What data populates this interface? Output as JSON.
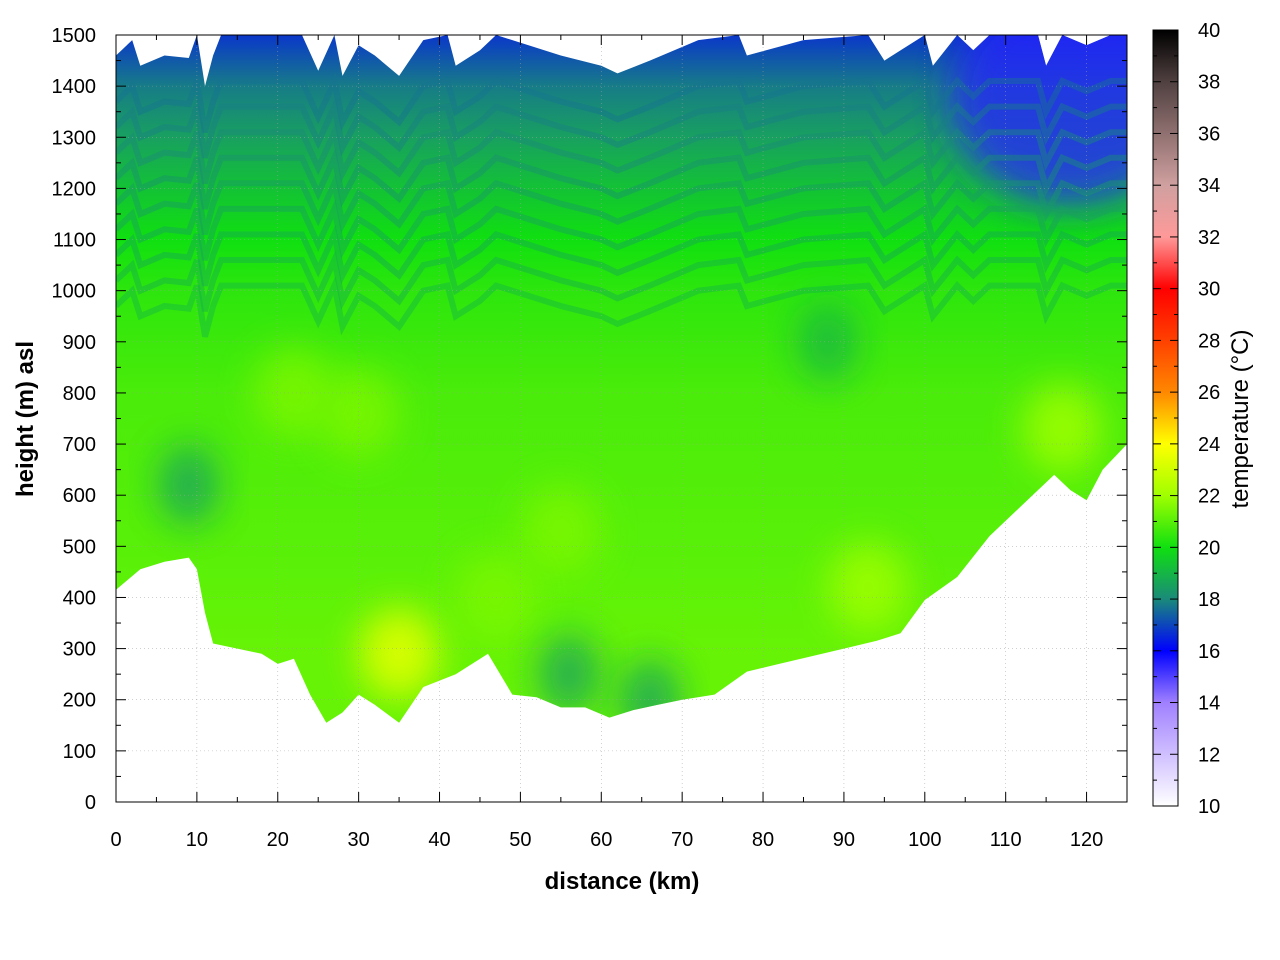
{
  "chart_data": {
    "type": "heatmap",
    "xlabel": "distance (km)",
    "ylabel": "height (m) asl",
    "colorbar_label": "temperature (°C)",
    "xlim": [
      0,
      125
    ],
    "ylim": [
      0,
      1500
    ],
    "clim": [
      10,
      40
    ],
    "x_ticks": [
      0,
      10,
      20,
      30,
      40,
      50,
      60,
      70,
      80,
      90,
      100,
      110,
      120
    ],
    "y_ticks": [
      0,
      100,
      200,
      300,
      400,
      500,
      600,
      700,
      800,
      900,
      1000,
      1100,
      1200,
      1300,
      1400,
      1500
    ],
    "colorbar_ticks": [
      10,
      12,
      14,
      16,
      18,
      20,
      22,
      24,
      26,
      28,
      30,
      32,
      34,
      36,
      38,
      40
    ],
    "grid": true,
    "colormap": [
      {
        "t": 10,
        "color": "#ffffff"
      },
      {
        "t": 14,
        "color": "#a080ff"
      },
      {
        "t": 16,
        "color": "#0000ff"
      },
      {
        "t": 18,
        "color": "#1a8a7a"
      },
      {
        "t": 20,
        "color": "#10e010"
      },
      {
        "t": 22,
        "color": "#a0ff00"
      },
      {
        "t": 24,
        "color": "#ffff00"
      },
      {
        "t": 26,
        "color": "#ff8800"
      },
      {
        "t": 28,
        "color": "#ff4000"
      },
      {
        "t": 30,
        "color": "#ff0000"
      },
      {
        "t": 32,
        "color": "#ff9999"
      },
      {
        "t": 34,
        "color": "#d0a0a0"
      },
      {
        "t": 36,
        "color": "#907070"
      },
      {
        "t": 38,
        "color": "#504040"
      },
      {
        "t": 40,
        "color": "#000000"
      }
    ],
    "terrain": [
      [
        0,
        415
      ],
      [
        3,
        455
      ],
      [
        6,
        470
      ],
      [
        9,
        478
      ],
      [
        10,
        455
      ],
      [
        11,
        370
      ],
      [
        12,
        310
      ],
      [
        15,
        300
      ],
      [
        18,
        290
      ],
      [
        20,
        270
      ],
      [
        22,
        280
      ],
      [
        24,
        210
      ],
      [
        26,
        155
      ],
      [
        28,
        175
      ],
      [
        30,
        210
      ],
      [
        32,
        190
      ],
      [
        35,
        155
      ],
      [
        38,
        225
      ],
      [
        42,
        250
      ],
      [
        46,
        290
      ],
      [
        49,
        210
      ],
      [
        52,
        205
      ],
      [
        55,
        185
      ],
      [
        58,
        185
      ],
      [
        61,
        165
      ],
      [
        64,
        180
      ],
      [
        67,
        190
      ],
      [
        70,
        200
      ],
      [
        74,
        210
      ],
      [
        78,
        255
      ],
      [
        82,
        270
      ],
      [
        86,
        285
      ],
      [
        90,
        300
      ],
      [
        94,
        315
      ],
      [
        97,
        330
      ],
      [
        100,
        395
      ],
      [
        104,
        440
      ],
      [
        108,
        520
      ],
      [
        112,
        580
      ],
      [
        116,
        640
      ],
      [
        118,
        610
      ],
      [
        120,
        590
      ],
      [
        122,
        650
      ],
      [
        125,
        700
      ]
    ],
    "top_edge": [
      [
        0,
        1460
      ],
      [
        2,
        1490
      ],
      [
        3,
        1440
      ],
      [
        6,
        1460
      ],
      [
        9,
        1455
      ],
      [
        10,
        1500
      ],
      [
        11,
        1400
      ],
      [
        12,
        1460
      ],
      [
        13,
        1500
      ],
      [
        23,
        1500
      ],
      [
        25,
        1430
      ],
      [
        27,
        1500
      ],
      [
        28,
        1420
      ],
      [
        30,
        1480
      ],
      [
        32,
        1460
      ],
      [
        35,
        1420
      ],
      [
        38,
        1490
      ],
      [
        41,
        1500
      ],
      [
        42,
        1440
      ],
      [
        45,
        1470
      ],
      [
        47,
        1500
      ],
      [
        55,
        1460
      ],
      [
        60,
        1440
      ],
      [
        62,
        1425
      ],
      [
        66,
        1450
      ],
      [
        72,
        1490
      ],
      [
        77,
        1500
      ],
      [
        78,
        1460
      ],
      [
        85,
        1490
      ],
      [
        93,
        1500
      ],
      [
        95,
        1450
      ],
      [
        100,
        1500
      ],
      [
        101,
        1440
      ],
      [
        104,
        1500
      ],
      [
        106,
        1470
      ],
      [
        108,
        1500
      ],
      [
        114,
        1500
      ],
      [
        115,
        1440
      ],
      [
        117,
        1500
      ],
      [
        120,
        1480
      ],
      [
        123,
        1500
      ],
      [
        125,
        1500
      ]
    ],
    "warm_pockets": [
      {
        "x": 35,
        "y": 290,
        "value": 23.5
      },
      {
        "x": 30,
        "y": 760,
        "value": 21.5
      },
      {
        "x": 55,
        "y": 530,
        "value": 21.5
      },
      {
        "x": 93,
        "y": 420,
        "value": 22.0
      },
      {
        "x": 117,
        "y": 730,
        "value": 22.0
      },
      {
        "x": 22,
        "y": 800,
        "value": 21.5
      },
      {
        "x": 47,
        "y": 400,
        "value": 21.5
      }
    ],
    "cool_pockets": [
      {
        "x": 9,
        "y": 620,
        "value": 18.5
      },
      {
        "x": 56,
        "y": 250,
        "value": 18.5
      },
      {
        "x": 66,
        "y": 200,
        "value": 18.5
      },
      {
        "x": 88,
        "y": 900,
        "value": 19.0
      }
    ]
  }
}
